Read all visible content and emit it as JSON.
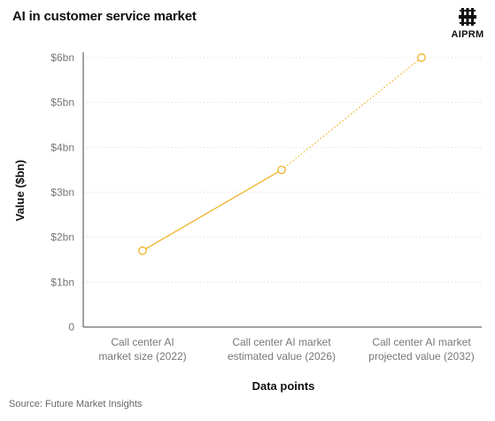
{
  "header": {
    "title": "AI in customer service market",
    "logo_text": "AIPRM",
    "logo_icon": "aiprm-logo-icon"
  },
  "footer": {
    "source": "Source: Future Market Insights"
  },
  "colors": {
    "series": "#f0b429",
    "grid": "#d9d9d9",
    "axis": "#444444",
    "tick_text": "#777777"
  },
  "chart_data": {
    "type": "line",
    "title": "AI in customer service market",
    "xlabel": "Data points",
    "ylabel": "Value ($bn)",
    "categories": [
      [
        "Call center AI",
        "market size (2022)"
      ],
      [
        "Call center AI market",
        "estimated value (2026)"
      ],
      [
        "Call center AI market",
        "projected value (2032)"
      ]
    ],
    "values": [
      1.7,
      3.5,
      6.0
    ],
    "projected_from_index": 1,
    "ylim": [
      0,
      6
    ],
    "yticks": [
      0,
      1,
      2,
      3,
      4,
      5,
      6
    ],
    "ytick_labels": [
      "0",
      "$1bn",
      "$2bn",
      "$3bn",
      "$4bn",
      "$5bn",
      "$6bn"
    ],
    "grid": "horizontal-dotted",
    "legend": "none"
  }
}
